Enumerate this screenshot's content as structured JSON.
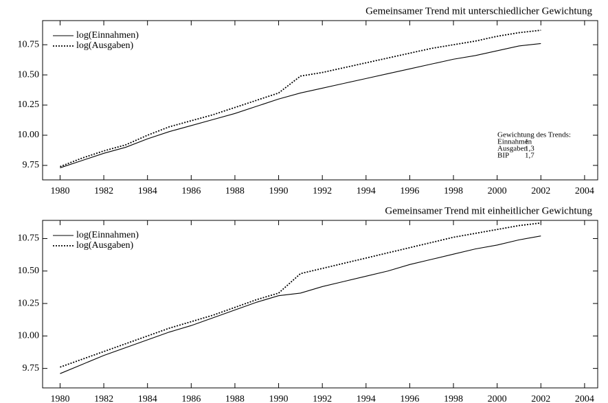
{
  "chart_data": [
    {
      "type": "line",
      "title": "Gemeinsamer Trend mit unterschiedlicher Gewichtung",
      "x": [
        1980,
        1981,
        1982,
        1983,
        1984,
        1985,
        1986,
        1987,
        1988,
        1989,
        1990,
        1991,
        1992,
        1993,
        1994,
        1995,
        1996,
        1997,
        1998,
        1999,
        2000,
        2001,
        2002
      ],
      "series": [
        {
          "name": "log(Einnahmen)",
          "color": "#000000",
          "line_style": "solid",
          "values": [
            9.73,
            9.79,
            9.85,
            9.9,
            9.97,
            10.03,
            10.08,
            10.13,
            10.18,
            10.24,
            10.3,
            10.35,
            10.39,
            10.43,
            10.47,
            10.51,
            10.55,
            10.59,
            10.63,
            10.66,
            10.7,
            10.74,
            10.76
          ]
        },
        {
          "name": "log(Ausgaben)",
          "color": "#000000",
          "line_style": "dotted",
          "values": [
            9.74,
            9.81,
            9.87,
            9.92,
            10.0,
            10.07,
            10.12,
            10.17,
            10.23,
            10.29,
            10.35,
            10.49,
            10.52,
            10.56,
            10.6,
            10.64,
            10.68,
            10.72,
            10.75,
            10.78,
            10.82,
            10.85,
            10.87
          ]
        }
      ],
      "xlim": [
        1979.2,
        2004.6
      ],
      "xticks": [
        1980,
        1982,
        1984,
        1986,
        1988,
        1990,
        1992,
        1994,
        1996,
        1998,
        2000,
        2002,
        2004
      ],
      "ylim": [
        9.63,
        10.95
      ],
      "yticks": [
        9.75,
        {
          "value": 10,
          "label": "10.00"
        },
        10.25,
        {
          "value": 10.5,
          "label": "10.50"
        },
        10.75
      ],
      "legend": "upper left",
      "annotation": {
        "heading": "Gewichtung des Trends:",
        "rows": [
          [
            "Einnahmen",
            "1"
          ],
          [
            "Ausgaben",
            "1,3"
          ],
          [
            "BIP",
            "1,7"
          ]
        ]
      }
    },
    {
      "type": "line",
      "title": "Gemeinsamer Trend mit einheitlicher Gewichtung",
      "x": [
        1980,
        1981,
        1982,
        1983,
        1984,
        1985,
        1986,
        1987,
        1988,
        1989,
        1990,
        1991,
        1992,
        1993,
        1994,
        1995,
        1996,
        1997,
        1998,
        1999,
        2000,
        2001,
        2002
      ],
      "series": [
        {
          "name": "log(Einnahmen)",
          "color": "#000000",
          "line_style": "solid",
          "values": [
            9.71,
            9.78,
            9.85,
            9.91,
            9.97,
            10.03,
            10.08,
            10.14,
            10.2,
            10.26,
            10.31,
            10.33,
            10.38,
            10.42,
            10.46,
            10.5,
            10.55,
            10.59,
            10.63,
            10.67,
            10.7,
            10.74,
            10.77
          ]
        },
        {
          "name": "log(Ausgaben)",
          "color": "#000000",
          "line_style": "dotted",
          "values": [
            9.76,
            9.82,
            9.88,
            9.94,
            10.0,
            10.06,
            10.11,
            10.16,
            10.22,
            10.28,
            10.33,
            10.48,
            10.52,
            10.56,
            10.6,
            10.64,
            10.68,
            10.72,
            10.76,
            10.79,
            10.82,
            10.85,
            10.87
          ]
        }
      ],
      "xlim": [
        1979.2,
        2004.6
      ],
      "xticks": [
        1980,
        1982,
        1984,
        1986,
        1988,
        1990,
        1992,
        1994,
        1996,
        1998,
        2000,
        2002,
        2004
      ],
      "ylim": [
        9.6,
        10.89
      ],
      "yticks": [
        9.75,
        {
          "value": 10,
          "label": "10.00"
        },
        10.25,
        {
          "value": 10.5,
          "label": "10.50"
        },
        10.75
      ],
      "legend": "upper left"
    }
  ]
}
